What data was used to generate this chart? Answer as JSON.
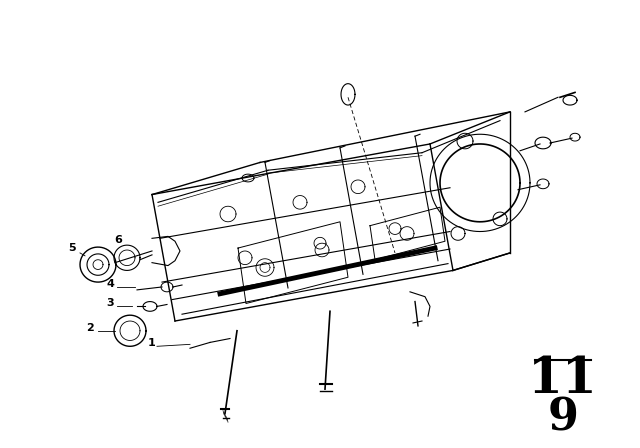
{
  "background_color": "#ffffff",
  "line_color": "#000000",
  "page_num_top": "11",
  "page_num_bottom": "9",
  "figsize": [
    6.4,
    4.48
  ],
  "dpi": 100
}
